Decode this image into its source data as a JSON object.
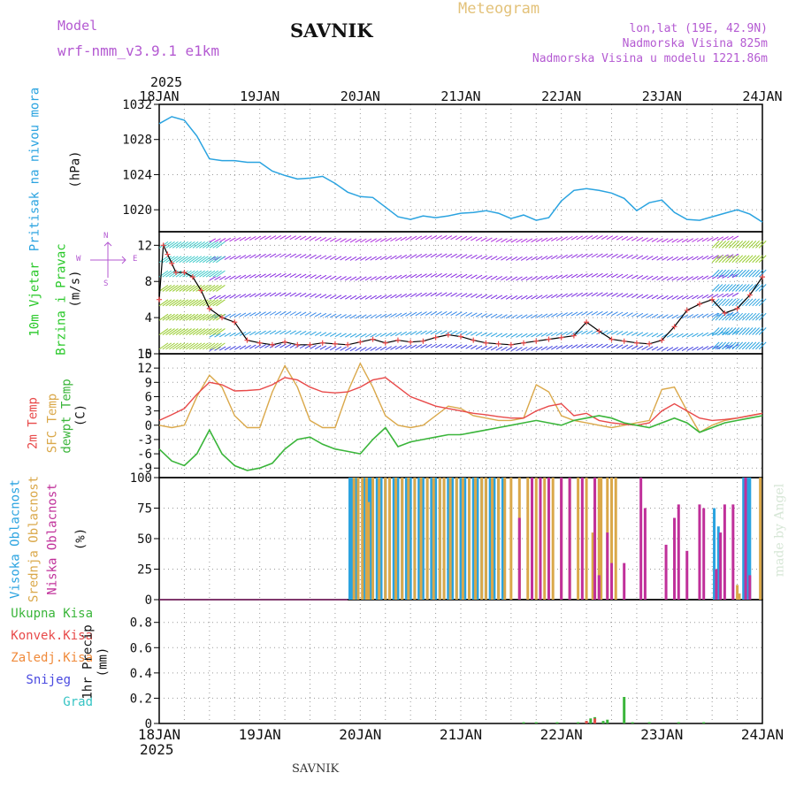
{
  "header": {
    "model_label": "Model",
    "model_name": "wrf-nmm_v3.9.1  e1km",
    "station": "SAVNIK",
    "meteogram": "Meteogram",
    "coords": "lon,lat (19E, 42.9N)",
    "elevation": "Nadmorska Visina 825m",
    "model_elevation": "Nadmorska Visina u modelu 1221.86m"
  },
  "footer": {
    "station": "SAVNIK",
    "watermark": "made by Angel"
  },
  "time_axis": {
    "year_top": "2025",
    "year_bottom": "2025",
    "labels": [
      "18JAN",
      "19JAN",
      "20JAN",
      "21JAN",
      "22JAN",
      "23JAN",
      "24JAN"
    ]
  },
  "panels": {
    "pressure": {
      "label_main": "Pritisak na nivou mora",
      "unit": "(hPa)"
    },
    "wind": {
      "label_line1": "10m Vjetar",
      "label_line2": "Brzina i Pravac",
      "unit": "(m/s)",
      "compass_top": "N",
      "compass_w": "W",
      "compass_e": "E",
      "compass_s": "S"
    },
    "temp": {
      "label_2m": "2m Temp",
      "label_sfc": "SFC Temp",
      "label_dew": "dewpt Temp",
      "unit": "(C)"
    },
    "cloud": {
      "label_high": "Visoka Oblacnost",
      "label_mid": "Srednja Oblacnost",
      "label_low": "Niska Oblacnost",
      "unit": "(%)"
    },
    "precip": {
      "legend": [
        {
          "label": "Ukupna Kisa",
          "color": "#3ab53a"
        },
        {
          "label": "Konvek.Kisa",
          "color": "#e84a4a"
        },
        {
          "label": "Zaledj.Kisa",
          "color": "#f08a3a"
        },
        {
          "label": "Snijeg",
          "color": "#4a4ae0"
        },
        {
          "label": "Grad",
          "color": "#36c4c4"
        }
      ],
      "unit_label": "1hr Precip (mm)"
    }
  },
  "colors": {
    "pressure": "#2aa3e0",
    "t2m": "#e84a4a",
    "tsfc": "#daa84a",
    "dew": "#3ab53a",
    "cloud_high": "#2aa3e0",
    "cloud_mid": "#daa84a",
    "cloud_low": "#c0309a",
    "wind_speed": "#e84a4a",
    "wind_line": "#000000",
    "grid": "#9a9a9a"
  },
  "chart_data": [
    {
      "type": "line",
      "ylabel": "(hPa)",
      "ylim": [
        1017.5,
        1032
      ],
      "yticks": [
        1020,
        1024,
        1028,
        1032
      ],
      "x": [
        0,
        3,
        6,
        9,
        12,
        15,
        18,
        21,
        24,
        27,
        30,
        33,
        36,
        39,
        42,
        45,
        48,
        51,
        54,
        57,
        60,
        63,
        66,
        69,
        72,
        75,
        78,
        81,
        84,
        87,
        90,
        93,
        96,
        99,
        102,
        105,
        108,
        111,
        114,
        117,
        120,
        123,
        126,
        129,
        132,
        135,
        138,
        141,
        144
      ],
      "series": [
        {
          "name": "Pritisak na nivou mora",
          "values": [
            1029.8,
            1030.6,
            1030.2,
            1028.4,
            1025.8,
            1025.6,
            1025.6,
            1025.4,
            1025.4,
            1024.4,
            1023.9,
            1023.5,
            1023.6,
            1023.8,
            1023.0,
            1022.0,
            1021.5,
            1021.4,
            1020.3,
            1019.2,
            1018.9,
            1019.3,
            1019.1,
            1019.3,
            1019.6,
            1019.7,
            1019.9,
            1019.6,
            1019.0,
            1019.4,
            1018.8,
            1019.1,
            1021.0,
            1022.2,
            1022.4,
            1022.2,
            1021.9,
            1021.3,
            1019.9,
            1020.8,
            1021.1,
            1019.7,
            1018.9,
            1018.8,
            1019.2,
            1019.6,
            1020.0,
            1019.5,
            1018.6
          ]
        }
      ]
    },
    {
      "type": "line",
      "ylabel": "(m/s)",
      "ylim": [
        0,
        13.5
      ],
      "yticks": [
        0,
        4,
        8,
        12
      ],
      "x": [
        0,
        1,
        2,
        3,
        4,
        6,
        8,
        10,
        12,
        15,
        18,
        21,
        24,
        27,
        30,
        33,
        36,
        39,
        42,
        45,
        48,
        51,
        54,
        57,
        60,
        63,
        66,
        69,
        72,
        75,
        78,
        81,
        84,
        87,
        90,
        93,
        96,
        99,
        102,
        105,
        108,
        111,
        114,
        117,
        120,
        123,
        126,
        129,
        132,
        135,
        138,
        141,
        144
      ],
      "series": [
        {
          "name": "10m Vjetar",
          "values": [
            6,
            12,
            11,
            10,
            9,
            9,
            8.5,
            7,
            5,
            4,
            3.5,
            1.5,
            1.2,
            1.0,
            1.3,
            1.0,
            1.0,
            1.2,
            1.1,
            1.0,
            1.3,
            1.6,
            1.2,
            1.5,
            1.3,
            1.4,
            1.8,
            2.1,
            1.9,
            1.5,
            1.2,
            1.1,
            1.0,
            1.2,
            1.4,
            1.6,
            1.8,
            2.0,
            3.5,
            2.5,
            1.6,
            1.4,
            1.2,
            1.1,
            1.5,
            3.0,
            4.8,
            5.5,
            6.0,
            4.5,
            5.0,
            6.5,
            8.5
          ]
        }
      ]
    },
    {
      "type": "line",
      "ylabel": "(C)",
      "ylim": [
        -11,
        15
      ],
      "yticks": [
        -9,
        -6,
        -3,
        0,
        3,
        6,
        9,
        12,
        15
      ],
      "x": [
        0,
        3,
        6,
        9,
        12,
        15,
        18,
        21,
        24,
        27,
        30,
        33,
        36,
        39,
        42,
        45,
        48,
        51,
        54,
        57,
        60,
        63,
        66,
        69,
        72,
        75,
        78,
        81,
        84,
        87,
        90,
        93,
        96,
        99,
        102,
        105,
        108,
        111,
        114,
        117,
        120,
        123,
        126,
        129,
        132,
        135,
        138,
        141,
        144
      ],
      "series": [
        {
          "name": "2m Temp",
          "values": [
            1,
            2.2,
            3.5,
            6.5,
            9,
            8.5,
            7.2,
            7.3,
            7.5,
            8.5,
            10,
            9.5,
            8,
            7,
            6.8,
            7,
            8,
            9.5,
            10,
            8,
            6,
            5,
            4,
            3.5,
            3,
            2.5,
            2.2,
            1.8,
            1.5,
            1.5,
            3,
            4,
            4.5,
            2,
            2.5,
            1,
            0.5,
            0.2,
            0,
            0.5,
            3,
            4.5,
            3,
            1.5,
            1,
            1.2,
            1.5,
            2,
            2.5
          ]
        },
        {
          "name": "SFC Temp",
          "values": [
            0,
            -0.5,
            0,
            6,
            10.5,
            8,
            2,
            -0.5,
            -0.5,
            7,
            12.5,
            8,
            1,
            -0.5,
            -0.5,
            7,
            13,
            8,
            2,
            0,
            -0.5,
            0,
            2,
            4,
            3.5,
            2,
            1.5,
            1,
            1,
            1.5,
            8.5,
            7,
            2,
            1,
            0.5,
            0,
            -0.5,
            0,
            0.5,
            1,
            7.5,
            8,
            3,
            -1.5,
            0,
            1,
            1.5,
            2,
            2.5
          ]
        },
        {
          "name": "dewpt Temp",
          "values": [
            -5,
            -7.5,
            -8.5,
            -6,
            -1,
            -6,
            -8.5,
            -9.5,
            -9,
            -8,
            -5,
            -3,
            -2.5,
            -4,
            -5,
            -5.5,
            -6,
            -3,
            -0.5,
            -4.5,
            -3.5,
            -3,
            -2.5,
            -2,
            -2,
            -1.5,
            -1,
            -0.5,
            0,
            0.5,
            1,
            0.5,
            0,
            1,
            1.5,
            2,
            1.5,
            0.5,
            0,
            -0.5,
            0.5,
            1.5,
            0.5,
            -1.5,
            -0.5,
            0.5,
            1,
            1.5,
            2
          ]
        }
      ]
    },
    {
      "type": "bar",
      "ylabel": "(%)",
      "ylim": [
        0,
        100
      ],
      "yticks": [
        0,
        25,
        50,
        75,
        100
      ],
      "x_range_hours": [
        0,
        144
      ],
      "series": [
        {
          "name": "Visoka Oblacnost",
          "bars": [
            [
              45.5,
              100
            ],
            [
              46,
              100
            ],
            [
              46.5,
              100
            ],
            [
              47,
              100
            ],
            [
              47.5,
              100
            ],
            [
              49,
              100
            ],
            [
              50,
              100
            ],
            [
              50.5,
              100
            ],
            [
              51,
              100
            ],
            [
              52,
              100
            ],
            [
              53,
              100
            ],
            [
              54,
              100
            ],
            [
              55,
              100
            ],
            [
              56,
              100
            ],
            [
              57,
              100
            ],
            [
              58,
              100
            ],
            [
              59,
              100
            ],
            [
              60,
              100
            ],
            [
              61,
              100
            ],
            [
              62,
              100
            ],
            [
              63,
              100
            ],
            [
              64,
              100
            ],
            [
              65,
              100
            ],
            [
              66,
              100
            ],
            [
              67,
              100
            ],
            [
              68,
              100
            ],
            [
              69,
              100
            ],
            [
              70,
              100
            ],
            [
              71,
              100
            ],
            [
              72,
              100
            ],
            [
              73,
              100
            ],
            [
              74,
              100
            ],
            [
              75,
              100
            ],
            [
              76,
              100
            ],
            [
              77,
              100
            ],
            [
              78,
              100
            ],
            [
              79,
              100
            ],
            [
              80,
              100
            ],
            [
              81,
              100
            ],
            [
              82,
              100
            ],
            [
              132.5,
              75
            ],
            [
              133.5,
              60
            ],
            [
              139.5,
              100
            ],
            [
              140,
              100
            ],
            [
              140.5,
              100
            ],
            [
              141,
              100
            ]
          ]
        },
        {
          "name": "Srednja Oblacnost",
          "bars": [
            [
              46.5,
              100
            ],
            [
              47.5,
              100
            ],
            [
              48.5,
              100
            ],
            [
              49.5,
              100
            ],
            [
              50,
              80
            ],
            [
              51,
              100
            ],
            [
              52.5,
              100
            ],
            [
              54,
              100
            ],
            [
              55,
              100
            ],
            [
              56.5,
              100
            ],
            [
              58,
              100
            ],
            [
              59.5,
              100
            ],
            [
              61,
              100
            ],
            [
              62.5,
              100
            ],
            [
              64,
              100
            ],
            [
              65.5,
              100
            ],
            [
              67,
              100
            ],
            [
              68,
              100
            ],
            [
              69.5,
              100
            ],
            [
              71,
              100
            ],
            [
              72.5,
              100
            ],
            [
              74,
              100
            ],
            [
              75.5,
              100
            ],
            [
              77,
              100
            ],
            [
              78,
              100
            ],
            [
              79.5,
              100
            ],
            [
              81,
              100
            ],
            [
              82.5,
              100
            ],
            [
              84,
              100
            ],
            [
              86,
              100
            ],
            [
              88,
              100
            ],
            [
              90,
              100
            ],
            [
              92,
              100
            ],
            [
              94,
              100
            ],
            [
              96,
              100
            ],
            [
              98,
              100
            ],
            [
              100,
              100
            ],
            [
              102,
              100
            ],
            [
              104,
              100
            ],
            [
              103.5,
              55
            ],
            [
              105,
              100
            ],
            [
              105.5,
              100
            ],
            [
              107,
              100
            ],
            [
              108,
              100
            ],
            [
              109,
              100
            ],
            [
              138,
              12
            ],
            [
              138.5,
              5
            ],
            [
              143.5,
              100
            ]
          ]
        },
        {
          "name": "Niska Oblacnost",
          "bars": [
            [
              86,
              67
            ],
            [
              89,
              100
            ],
            [
              91,
              100
            ],
            [
              93,
              100
            ],
            [
              96,
              100
            ],
            [
              98,
              100
            ],
            [
              101,
              100
            ],
            [
              104,
              100
            ],
            [
              105,
              20
            ],
            [
              107,
              55
            ],
            [
              108,
              30
            ],
            [
              111,
              30
            ],
            [
              115,
              100
            ],
            [
              116,
              75
            ],
            [
              121,
              45
            ],
            [
              123,
              67
            ],
            [
              124,
              78
            ],
            [
              126,
              40
            ],
            [
              129,
              78
            ],
            [
              130,
              75
            ],
            [
              133,
              25
            ],
            [
              134,
              55
            ],
            [
              135,
              78
            ],
            [
              137,
              78
            ],
            [
              140,
              100
            ],
            [
              141,
              20
            ]
          ]
        }
      ]
    },
    {
      "type": "bar",
      "ylabel": "1hr Precip (mm)",
      "ylim": [
        0,
        0.98
      ],
      "yticks": [
        0,
        0.2,
        0.4,
        0.6,
        0.8
      ],
      "x_range_hours": [
        0,
        144
      ],
      "series": [
        {
          "name": "Ukupna Kisa",
          "bars": [
            [
              87,
              0.01
            ],
            [
              90,
              0.01
            ],
            [
              95,
              0.01
            ],
            [
              100,
              0.01
            ],
            [
              102,
              0.02
            ],
            [
              103,
              0.04
            ],
            [
              104,
              0.05
            ],
            [
              106,
              0.02
            ],
            [
              107,
              0.03
            ],
            [
              111,
              0.21
            ],
            [
              113,
              0.01
            ],
            [
              117,
              0.01
            ],
            [
              124,
              0.01
            ],
            [
              130,
              0.01
            ]
          ]
        },
        {
          "name": "Konvek.Kisa",
          "bars": [
            [
              102,
              0.02
            ],
            [
              104,
              0.04
            ]
          ]
        }
      ]
    }
  ]
}
